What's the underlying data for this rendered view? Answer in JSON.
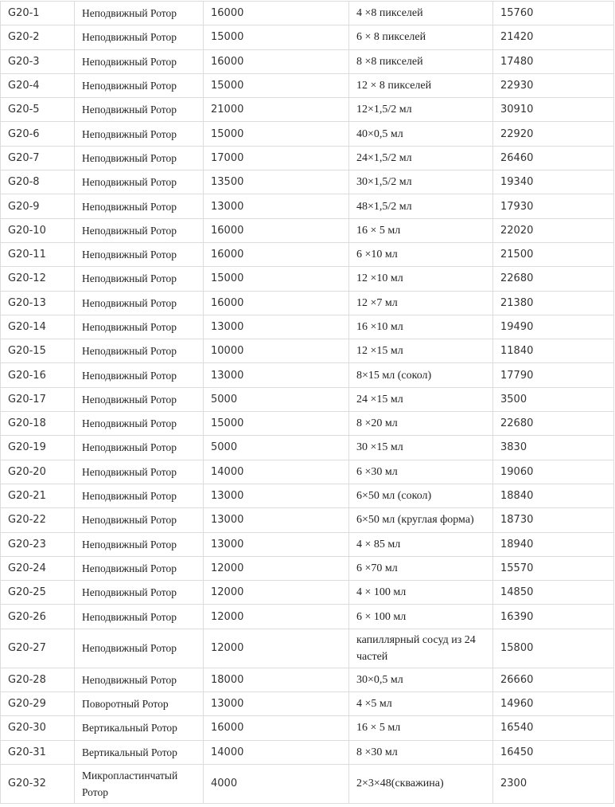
{
  "table": {
    "rows": [
      [
        "G20-1",
        "Неподвижный Ротор",
        "16000",
        "4 ×8 пикселей",
        "15760"
      ],
      [
        "G20-2",
        "Неподвижный Ротор",
        "15000",
        "6 × 8 пикселей",
        "21420"
      ],
      [
        "G20-3",
        "Неподвижный Ротор",
        "16000",
        "8 ×8 пикселей",
        "17480"
      ],
      [
        "G20-4",
        "Неподвижный Ротор",
        "15000",
        "12 × 8 пикселей",
        "22930"
      ],
      [
        "G20-5",
        "Неподвижный Ротор",
        "21000",
        "12×1,5/2 мл",
        "30910"
      ],
      [
        "G20-6",
        "Неподвижный Ротор",
        "15000",
        "40×0,5 мл",
        "22920"
      ],
      [
        "G20-7",
        "Неподвижный Ротор",
        "17000",
        "24×1,5/2 мл",
        "26460"
      ],
      [
        "G20-8",
        "Неподвижный Ротор",
        "13500",
        "30×1,5/2 мл",
        "19340"
      ],
      [
        "G20-9",
        "Неподвижный Ротор",
        "13000",
        "48×1,5/2 мл",
        "17930"
      ],
      [
        "G20-10",
        "Неподвижный Ротор",
        "16000",
        "16 × 5 мл",
        "22020"
      ],
      [
        "G20-11",
        "Неподвижный Ротор",
        "16000",
        "6 ×10 мл",
        "21500"
      ],
      [
        "G20-12",
        "Неподвижный Ротор",
        "15000",
        "12 ×10 мл",
        "22680"
      ],
      [
        "G20-13",
        "Неподвижный Ротор",
        "16000",
        "12 ×7 мл",
        "21380"
      ],
      [
        "G20-14",
        "Неподвижный Ротор",
        "13000",
        "16 ×10 мл",
        "19490"
      ],
      [
        "G20-15",
        "Неподвижный Ротор",
        "10000",
        "12 ×15 мл",
        "11840"
      ],
      [
        "G20-16",
        "Неподвижный Ротор",
        "13000",
        "8×15 мл (сокол)",
        "17790"
      ],
      [
        "G20-17",
        "Неподвижный Ротор",
        "5000",
        "24 ×15 мл",
        "3500"
      ],
      [
        "G20-18",
        "Неподвижный Ротор",
        "15000",
        "8 ×20 мл",
        "22680"
      ],
      [
        "G20-19",
        "Неподвижный Ротор",
        "5000",
        "30 ×15 мл",
        "3830"
      ],
      [
        "G20-20",
        "Неподвижный Ротор",
        "14000",
        "6 ×30 мл",
        "19060"
      ],
      [
        "G20-21",
        "Неподвижный Ротор",
        "13000",
        "6×50 мл (сокол)",
        "18840"
      ],
      [
        "G20-22",
        "Неподвижный Ротор",
        "13000",
        "6×50 мл (круглая форма)",
        "18730"
      ],
      [
        "G20-23",
        "Неподвижный Ротор",
        "13000",
        "4 × 85 мл",
        "18940"
      ],
      [
        "G20-24",
        "Неподвижный Ротор",
        "12000",
        "6 ×70 мл",
        "15570"
      ],
      [
        "G20-25",
        "Неподвижный Ротор",
        "12000",
        "4 × 100 мл",
        "14850"
      ],
      [
        "G20-26",
        "Неподвижный Ротор",
        "12000",
        "6 × 100 мл",
        "16390"
      ],
      [
        "G20-27",
        "Неподвижный Ротор",
        "12000",
        "капиллярный сосуд из 24 частей",
        "15800"
      ],
      [
        "G20-28",
        "Неподвижный Ротор",
        "18000",
        "30×0,5 мл",
        "26660"
      ],
      [
        "G20-29",
        "Поворотный Ротор",
        "13000",
        "4 ×5 мл",
        "14960"
      ],
      [
        "G20-30",
        "Вертикальный Ротор",
        "16000",
        "16 × 5 мл",
        "16540"
      ],
      [
        "G20-31",
        "Вертикальный Ротор",
        "14000",
        "8 ×30 мл",
        "16450"
      ],
      [
        "G20-32",
        "Микропластинчатый Ротор",
        "4000",
        "2×3×48(скважина)",
        "2300"
      ]
    ]
  }
}
